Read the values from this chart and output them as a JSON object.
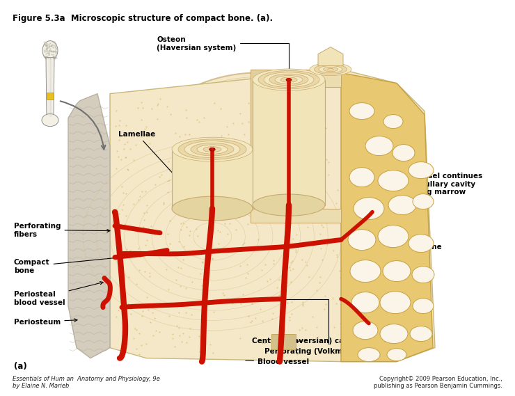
{
  "title": "Figure 5.3a  Microscopic structure of compact bone. (a).",
  "title_fontsize": 8.5,
  "bg_color": "#ffffff",
  "figure_label": "(a)",
  "labels": {
    "osteon": "Osteon\n(Haversian system)",
    "lamellae": "Lamellae",
    "blood_vessel_continues": "Blood vessel continues\ninto medullary cavity\ncontaining marrow",
    "spongy_bone": "Spongy bone",
    "perforating_fibers": "Perforating\nfibers",
    "compact_bone": "Compact\nbone",
    "periosteal_blood_vessel": "Periosteal\nblood vessel",
    "periosteum": "Periosteum",
    "central_canal": "Central (Haversian) canal",
    "perforating_canal": "Perforating (Volkmann’s) canal",
    "blood_vessel": "Blood vessel"
  },
  "footer_left": "Essentials of Hum an  Anatomy and Physiology, 9e\nby Elaine N. Marieb",
  "footer_right": "Copyright© 2009 Pearson Education, Inc.,\npublishing as Pearson Benjamin Cummings.",
  "bone_color": "#f5e8c8",
  "bone_light": "#faf3e0",
  "bone_dark": "#e8d5a3",
  "spongy_color": "#e8c87a",
  "spongy_light": "#f2d98a",
  "periosteum_color": "#d8d0c8",
  "periosteum_light": "#e8e0d8",
  "blood_vessel_color": "#cc1100",
  "label_fontsize": 7.5,
  "annotation_fontsize": 7.5
}
